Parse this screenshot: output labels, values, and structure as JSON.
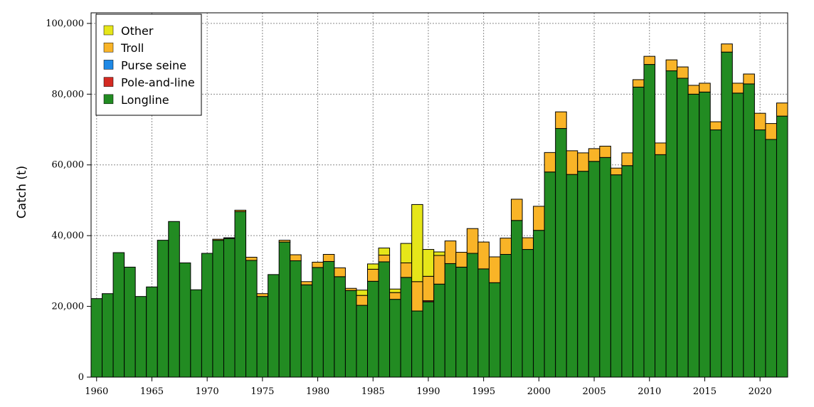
{
  "chart_data": {
    "type": "bar",
    "stacked": true,
    "title": "",
    "xlabel": "",
    "ylabel": "Catch (t)",
    "ylim": [
      0,
      103000
    ],
    "xlim": [
      1959.5,
      2022.5
    ],
    "grid": true,
    "legend_position": "top-left",
    "x_ticks": [
      "1960",
      "1965",
      "1970",
      "1975",
      "1980",
      "1985",
      "1990",
      "1995",
      "2000",
      "2005",
      "2010",
      "2015",
      "2020"
    ],
    "y_ticks": [
      "0",
      "20,000",
      "40,000",
      "60,000",
      "80,000",
      "100,000"
    ],
    "legend": [
      "Other",
      "Troll",
      "Purse seine",
      "Pole-and-line",
      "Longline"
    ],
    "colors": {
      "Longline": "#228b22",
      "Pole-and-line": "#d42a22",
      "Purse seine": "#1e88e5",
      "Troll": "#f9b427",
      "Other": "#e6e619"
    },
    "categories": [
      1960,
      1961,
      1962,
      1963,
      1964,
      1965,
      1966,
      1967,
      1968,
      1969,
      1970,
      1971,
      1972,
      1973,
      1974,
      1975,
      1976,
      1977,
      1978,
      1979,
      1980,
      1981,
      1982,
      1983,
      1984,
      1985,
      1986,
      1987,
      1988,
      1989,
      1990,
      1991,
      1992,
      1993,
      1994,
      1995,
      1996,
      1997,
      1998,
      1999,
      2000,
      2001,
      2002,
      2003,
      2004,
      2005,
      2006,
      2007,
      2008,
      2009,
      2010,
      2011,
      2012,
      2013,
      2014,
      2015,
      2016,
      2017,
      2018,
      2019,
      2020,
      2021,
      2022
    ],
    "series": [
      {
        "name": "Longline",
        "values": [
          22200,
          23600,
          35200,
          31100,
          22800,
          25500,
          38700,
          44000,
          32300,
          24700,
          35000,
          38700,
          39200,
          46800,
          33000,
          22800,
          29000,
          38200,
          32900,
          26100,
          31000,
          32700,
          28400,
          24500,
          20300,
          27100,
          32600,
          22000,
          28200,
          18700,
          21300,
          26300,
          32100,
          31100,
          35000,
          30600,
          26700,
          34700,
          44300,
          36100,
          41500,
          58000,
          70300,
          57300,
          58200,
          61000,
          62100,
          57200,
          59800,
          82000,
          88400,
          62900,
          86600,
          84500,
          80000,
          80600,
          69900,
          91900,
          80300,
          82900,
          69900,
          67200,
          73800
        ]
      },
      {
        "name": "Pole-and-line",
        "values": [
          0,
          0,
          0,
          0,
          0,
          0,
          0,
          0,
          0,
          0,
          0,
          0,
          0,
          0,
          0,
          0,
          0,
          0,
          0,
          0,
          0,
          0,
          0,
          0,
          0,
          0,
          0,
          0,
          0,
          0,
          300,
          0,
          0,
          0,
          0,
          0,
          0,
          0,
          0,
          0,
          0,
          0,
          0,
          0,
          0,
          0,
          0,
          0,
          0,
          0,
          0,
          0,
          0,
          0,
          0,
          0,
          0,
          0,
          0,
          0,
          0,
          0,
          0
        ]
      },
      {
        "name": "Purse seine",
        "values": [
          0,
          0,
          0,
          0,
          0,
          0,
          0,
          0,
          0,
          0,
          0,
          0,
          0,
          0,
          0,
          0,
          0,
          0,
          0,
          0,
          0,
          0,
          0,
          0,
          0,
          0,
          0,
          0,
          0,
          0,
          0,
          0,
          0,
          0,
          0,
          0,
          0,
          0,
          0,
          0,
          0,
          0,
          0,
          0,
          0,
          0,
          0,
          0,
          0,
          0,
          0,
          0,
          0,
          0,
          0,
          0,
          0,
          0,
          0,
          0,
          0,
          0,
          0
        ]
      },
      {
        "name": "Troll",
        "values": [
          0,
          0,
          0,
          0,
          0,
          0,
          0,
          0,
          0,
          0,
          0,
          300,
          200,
          400,
          900,
          800,
          0,
          500,
          1700,
          900,
          1500,
          2000,
          2500,
          600,
          2800,
          3400,
          1900,
          1900,
          4100,
          8300,
          6900,
          8100,
          6400,
          4200,
          7000,
          7600,
          7300,
          4600,
          6000,
          3300,
          6800,
          5500,
          4700,
          6700,
          5200,
          3600,
          3200,
          1900,
          3600,
          2100,
          2300,
          3300,
          3100,
          3200,
          2500,
          2500,
          2300,
          2300,
          2800,
          2800,
          4700,
          4500,
          3700
        ]
      },
      {
        "name": "Other",
        "values": [
          0,
          0,
          0,
          0,
          0,
          0,
          0,
          0,
          0,
          0,
          0,
          0,
          0,
          0,
          0,
          0,
          0,
          0,
          0,
          0,
          0,
          0,
          0,
          0,
          1500,
          1500,
          2000,
          1000,
          5500,
          21800,
          7600,
          1000,
          0,
          0,
          0,
          0,
          0,
          0,
          0,
          0,
          0,
          0,
          0,
          0,
          0,
          0,
          0,
          0,
          0,
          0,
          0,
          0,
          0,
          0,
          0,
          0,
          0,
          0,
          0,
          0,
          0,
          0,
          0
        ]
      }
    ],
    "totals": [
      22200,
      23600,
      35200,
      31100,
      22800,
      25500,
      38700,
      44000,
      32300,
      24700,
      35000,
      39000,
      39400,
      47200,
      33900,
      23600,
      29000,
      38700,
      34600,
      27000,
      32500,
      34700,
      30900,
      25100,
      24600,
      32000,
      36500,
      24900,
      37800,
      48800,
      36100,
      35400,
      38500,
      35300,
      42000,
      38200,
      34000,
      39300,
      50300,
      39400,
      48300,
      63500,
      75000,
      64000,
      63400,
      64600,
      65300,
      59100,
      63400,
      84100,
      90700,
      66200,
      89700,
      87700,
      82500,
      83100,
      72200,
      94200,
      83100,
      85700,
      74600,
      71700,
      77500
    ]
  }
}
